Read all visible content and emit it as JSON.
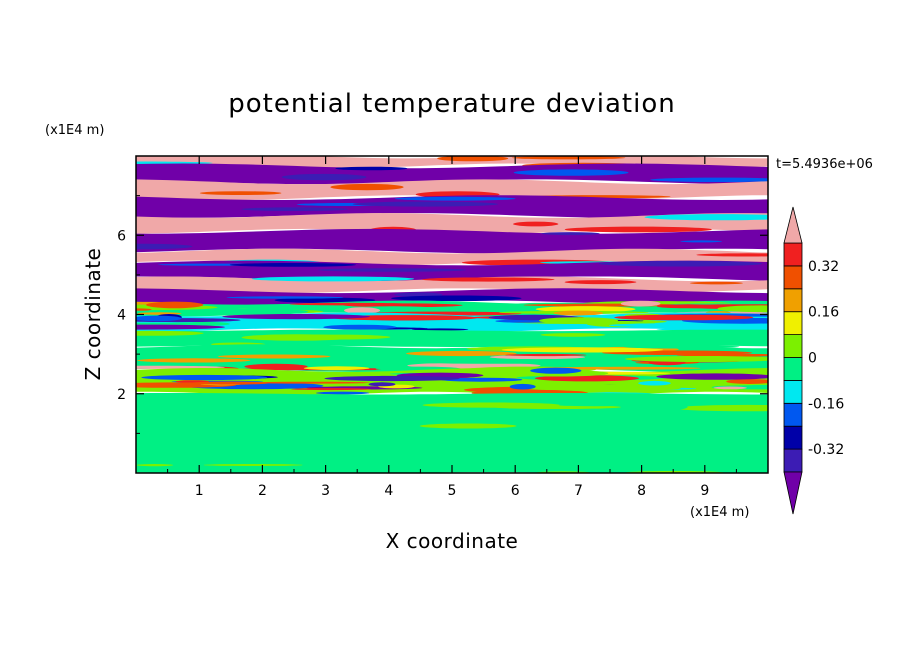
{
  "chart_data": {
    "type": "heatmap",
    "title": "potential temperature deviation",
    "xlabel": "X coordinate",
    "ylabel": "Z coordinate",
    "x_unit": "(x1E4 m)",
    "y_unit": "(x1E4 m)",
    "time_label": "t=5.4936e+06",
    "xlim": [
      0,
      10
    ],
    "ylim": [
      0,
      8
    ],
    "x_ticks": [
      1,
      2,
      3,
      4,
      5,
      6,
      7,
      8,
      9
    ],
    "y_ticks": [
      2,
      4,
      6
    ],
    "x_tick_labels": [
      "1",
      "2",
      "3",
      "4",
      "5",
      "6",
      "7",
      "8",
      "9"
    ],
    "y_tick_labels": [
      "2",
      "4",
      "6"
    ],
    "colorbar": {
      "levels": [
        -0.4,
        -0.32,
        -0.24,
        -0.16,
        -0.08,
        0,
        0.08,
        0.16,
        0.24,
        0.32,
        0.4
      ],
      "tick_values": [
        0.32,
        0.16,
        0,
        -0.16,
        -0.32
      ],
      "tick_labels": [
        "0.32",
        "0.16",
        "0",
        "-0.16",
        "-0.32"
      ],
      "colors": [
        "#7000a8",
        "#3c1cb4",
        "#0000a8",
        "#0058f0",
        "#00e8f0",
        "#00f084",
        "#7cf000",
        "#f0f000",
        "#f0a000",
        "#f05000",
        "#f02020",
        "#f0a8a8"
      ],
      "extend": "both"
    },
    "bands": [
      {
        "z": [
          7.75,
          8.0
        ],
        "level": "max"
      },
      {
        "z": [
          7.35,
          7.75
        ],
        "level": "min"
      },
      {
        "z": [
          6.95,
          7.35
        ],
        "level": "max"
      },
      {
        "z": [
          6.5,
          6.95
        ],
        "level": "min"
      },
      {
        "z": [
          6.1,
          6.5
        ],
        "level": "max"
      },
      {
        "z": [
          5.6,
          6.1
        ],
        "level": "min"
      },
      {
        "z": [
          5.3,
          5.6
        ],
        "level": "max"
      },
      {
        "z": [
          4.9,
          5.3
        ],
        "level": "min"
      },
      {
        "z": [
          4.6,
          4.9
        ],
        "level": "max"
      },
      {
        "z": [
          4.3,
          4.6
        ],
        "level": "min"
      },
      {
        "z": [
          4.0,
          4.3
        ],
        "level": "mixed_warm"
      },
      {
        "z": [
          3.6,
          4.0
        ],
        "level": "mixed_cool"
      },
      {
        "z": [
          3.2,
          3.6
        ],
        "level": "near_zero"
      },
      {
        "z": [
          2.6,
          3.2
        ],
        "level": "mixed_warm"
      },
      {
        "z": [
          2.0,
          2.6
        ],
        "level": "mixed"
      },
      {
        "z": [
          0.0,
          2.0
        ],
        "level": "near_zero"
      }
    ]
  }
}
